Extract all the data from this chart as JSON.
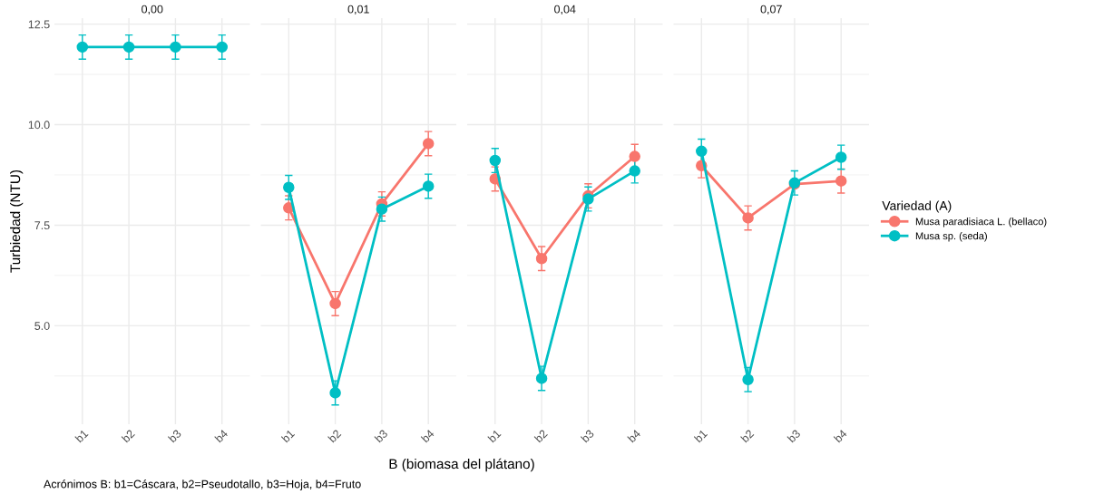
{
  "chart_data": [
    {
      "type": "line",
      "title": "0,00",
      "ylabel": "Turbiedad (NTU)",
      "annotations": [
        "Acrónimos B: b1=Cáscara, b2=Pseudotallo, b3=Hoja, b4=Fruto"
      ],
      "categories": [
        "b1",
        "b2",
        "b3",
        "b4"
      ],
      "marker": "circle",
      "grid": true,
      "legend": "right",
      "legend_title": "Variedad (A)",
      "ylim": [
        2.55,
        12.65
      ],
      "yticks": [
        {
          "value": 5,
          "label": "5.0"
        },
        {
          "value": 7.5,
          "label": "7.5"
        },
        {
          "value": 10,
          "label": "10.0"
        },
        {
          "value": 12.5,
          "label": "12.5"
        }
      ],
      "series": [
        {
          "name": "Musa paradisiaca L. (bellaco)",
          "color": "#f8766d",
          "values": [
            null,
            null,
            null,
            null
          ],
          "errors": [
            null,
            null,
            null,
            null
          ]
        },
        {
          "name": "Musa sp. (seda)",
          "color": "#00bfc4",
          "values": [
            11.93,
            11.93,
            11.93,
            11.93
          ],
          "errors": [
            0.3,
            0.3,
            0.3,
            0.3
          ]
        }
      ]
    },
    {
      "type": "line",
      "title": "0,01",
      "xlabel": "B (biomasa del plátano)",
      "categories": [
        "b1",
        "b2",
        "b3",
        "b4"
      ],
      "marker": "circle",
      "grid": true,
      "tick_labels": "x",
      "ylim": [
        2.55,
        12.65
      ],
      "yticks": [
        {
          "value": 5,
          "label": null
        },
        {
          "value": 7.5,
          "label": null
        },
        {
          "value": 10,
          "label": null
        },
        {
          "value": 12.5,
          "label": null
        }
      ],
      "series": [
        {
          "color": "#f8766d",
          "values": [
            7.93,
            5.55,
            8.03,
            9.53
          ],
          "errors": [
            0.3,
            0.3,
            0.3,
            0.3
          ]
        },
        {
          "color": "#00bfc4",
          "values": [
            8.44,
            3.33,
            7.9,
            8.47
          ],
          "errors": [
            0.3,
            0.3,
            0.3,
            0.3
          ]
        }
      ]
    },
    {
      "type": "line",
      "title": "0,04",
      "categories": [
        "b1",
        "b2",
        "b3",
        "b4"
      ],
      "marker": "circle",
      "grid": true,
      "tick_labels": "x",
      "ylim": [
        2.55,
        12.65
      ],
      "yticks": [
        {
          "value": 5,
          "label": null
        },
        {
          "value": 7.5,
          "label": null
        },
        {
          "value": 10,
          "label": null
        },
        {
          "value": 12.5,
          "label": null
        }
      ],
      "series": [
        {
          "color": "#f8766d",
          "values": [
            8.65,
            6.67,
            8.23,
            9.21
          ],
          "errors": [
            0.3,
            0.3,
            0.3,
            0.3
          ]
        },
        {
          "color": "#00bfc4",
          "values": [
            9.11,
            3.69,
            8.15,
            8.85
          ],
          "errors": [
            0.3,
            0.3,
            0.3,
            0.3
          ]
        }
      ]
    },
    {
      "type": "line",
      "title": "0,07",
      "categories": [
        "b1",
        "b2",
        "b3",
        "b4"
      ],
      "marker": "circle",
      "grid": true,
      "tick_labels": "x",
      "ylim": [
        2.55,
        12.65
      ],
      "yticks": [
        {
          "value": 5,
          "label": null
        },
        {
          "value": 7.5,
          "label": null
        },
        {
          "value": 10,
          "label": null
        },
        {
          "value": 12.5,
          "label": null
        }
      ],
      "series": [
        {
          "color": "#f8766d",
          "values": [
            8.98,
            7.68,
            8.52,
            8.6
          ],
          "errors": [
            0.3,
            0.3,
            null,
            0.3
          ]
        },
        {
          "color": "#00bfc4",
          "values": [
            9.34,
            3.66,
            8.55,
            9.19
          ],
          "errors": [
            0.3,
            0.3,
            0.3,
            0.3
          ]
        }
      ]
    }
  ]
}
